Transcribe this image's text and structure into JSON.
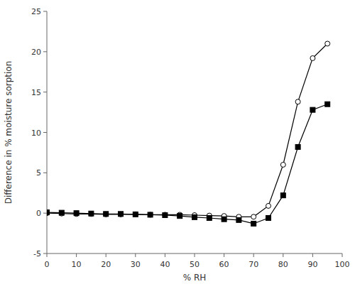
{
  "chart_data": {
    "type": "line",
    "xlabel": "% RH",
    "ylabel": "Difference in % moisture sorption",
    "x": [
      0,
      5,
      10,
      15,
      20,
      25,
      30,
      35,
      40,
      45,
      50,
      55,
      60,
      65,
      70,
      75,
      80,
      85,
      90,
      95
    ],
    "series": [
      {
        "color": "black",
        "marker": "open-circle",
        "line_style": "solid",
        "values": [
          0.0,
          -0.05,
          -0.1,
          -0.1,
          -0.15,
          -0.15,
          -0.15,
          -0.2,
          -0.2,
          -0.2,
          -0.25,
          -0.3,
          -0.35,
          -0.45,
          -0.45,
          0.9,
          6.0,
          13.8,
          19.2,
          21.0
        ]
      },
      {
        "color": "black",
        "marker": "square",
        "line_style": "solid",
        "values": [
          0.1,
          0.05,
          0.0,
          -0.05,
          -0.1,
          -0.1,
          -0.15,
          -0.2,
          -0.25,
          -0.35,
          -0.5,
          -0.6,
          -0.75,
          -0.85,
          -1.3,
          -0.6,
          2.2,
          8.2,
          12.8,
          13.5
        ]
      }
    ],
    "xlim": [
      0,
      100
    ],
    "ylim": [
      -5,
      25
    ],
    "xticks": [
      0,
      10,
      20,
      30,
      40,
      50,
      60,
      70,
      80,
      90,
      100
    ],
    "yticks": [
      -5,
      0,
      5,
      10,
      15,
      20,
      25
    ],
    "grid": false
  }
}
